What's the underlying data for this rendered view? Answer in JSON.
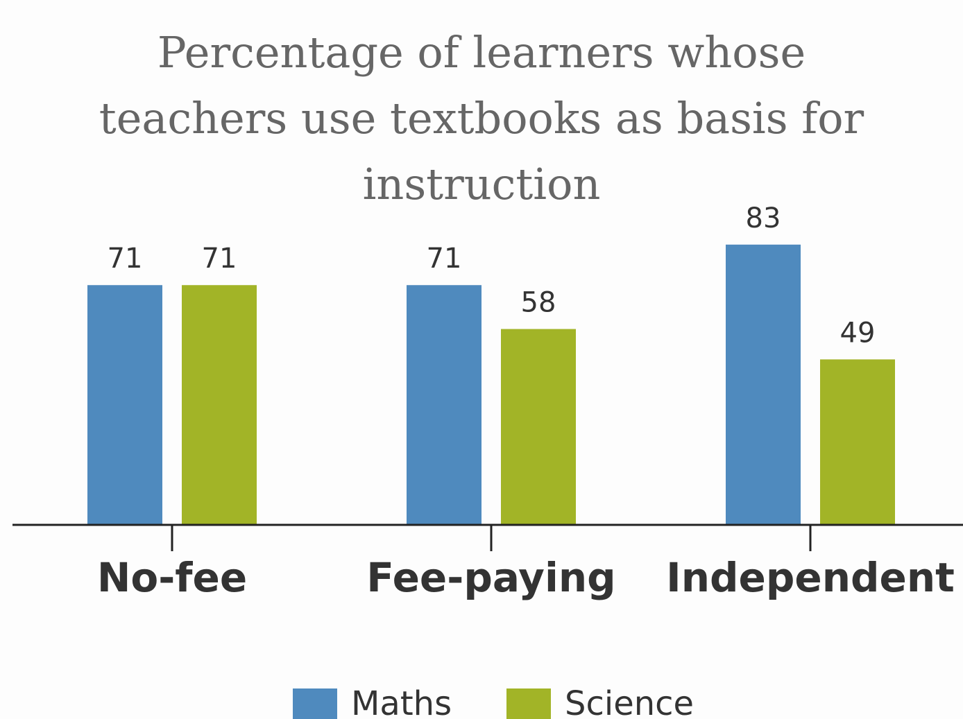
{
  "chart_data": {
    "type": "bar",
    "title": "Percentage of learners whose teachers use textbooks as basis for instruction",
    "categories": [
      "No-fee",
      "Fee-paying",
      "Independent"
    ],
    "series": [
      {
        "name": "Maths",
        "color": "#4f8abe",
        "values": [
          71,
          71,
          83
        ]
      },
      {
        "name": "Science",
        "color": "#a2b427",
        "values": [
          71,
          58,
          49
        ]
      }
    ],
    "ylim": [
      0,
      100
    ]
  }
}
